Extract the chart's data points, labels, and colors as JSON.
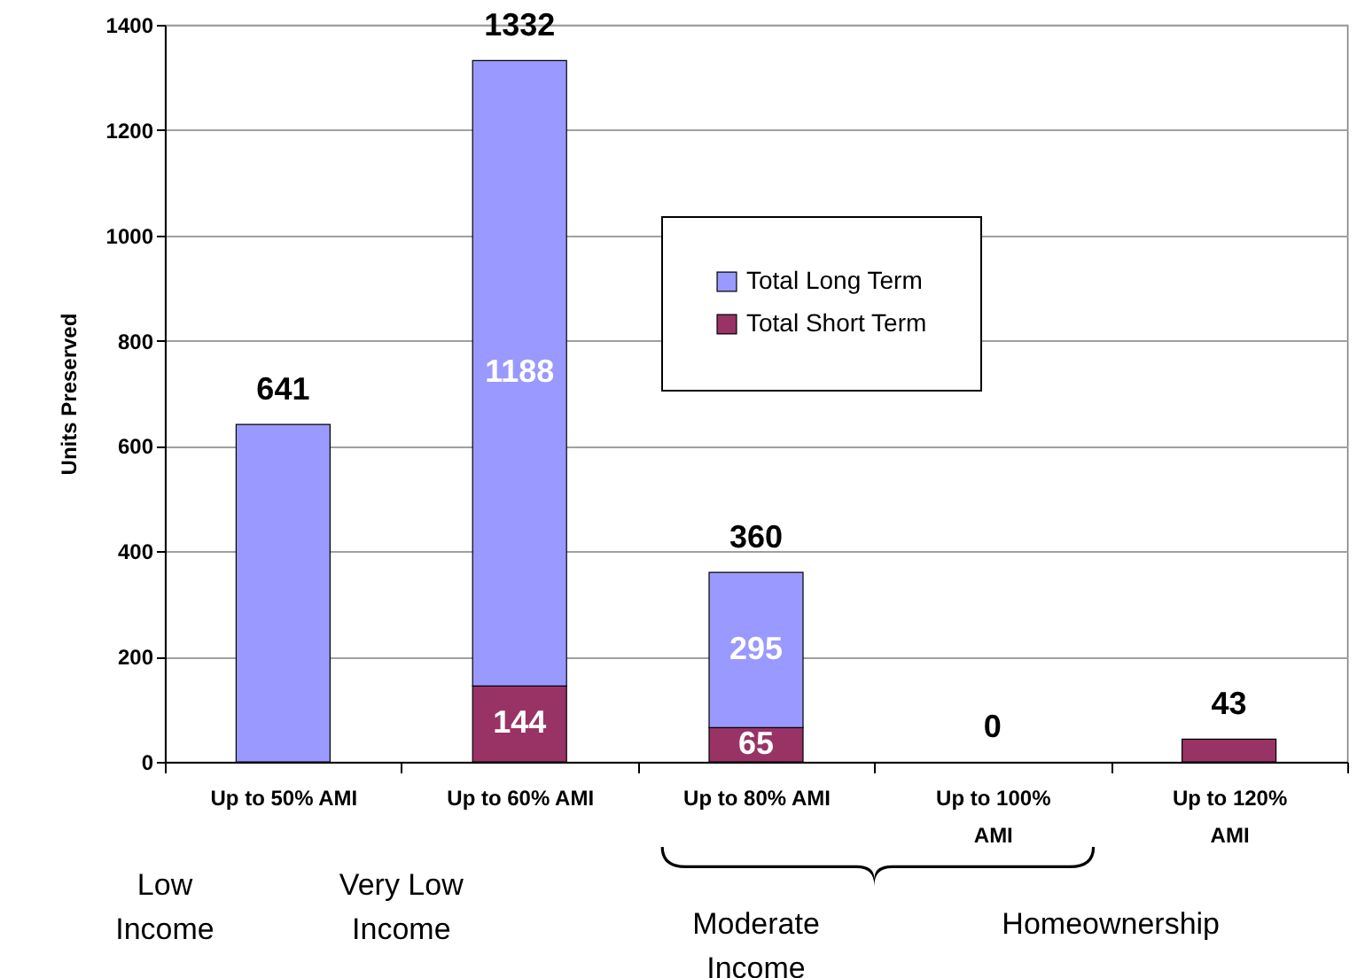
{
  "chart_data": {
    "type": "bar",
    "stacked": true,
    "categories": [
      "Up to 50% AMI",
      "Up to 60% AMI",
      "Up to 80% AMI",
      "Up to 100% AMI",
      "Up to 120% AMI"
    ],
    "series": [
      {
        "name": "Total Short Term",
        "color": "#993366",
        "values": [
          0,
          144,
          65,
          0,
          43
        ],
        "value_labels": [
          null,
          "144",
          "65",
          null,
          null
        ]
      },
      {
        "name": "Total Long Term",
        "color": "#9999ff",
        "values": [
          641,
          1188,
          295,
          0,
          0
        ],
        "value_labels": [
          null,
          "1188",
          "295",
          null,
          null
        ]
      }
    ],
    "totals": [
      "641",
      "1332",
      "360",
      "0",
      "43"
    ],
    "ylabel": "Units Preserved",
    "ylim": [
      0,
      1400
    ],
    "yticks": [
      0,
      200,
      400,
      600,
      800,
      1000,
      1200,
      1400
    ],
    "grid": "y",
    "legend": "top right",
    "annotations": [
      "Low Income",
      "Very Low Income",
      "Moderate Income",
      "Homeownership"
    ]
  }
}
